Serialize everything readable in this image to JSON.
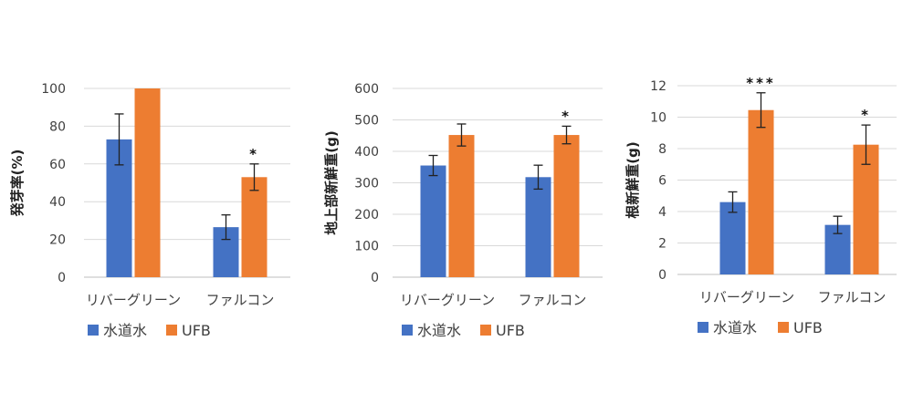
{
  "colors": {
    "tap": "#4472c4",
    "ufb": "#ed7d31",
    "grid": "#d9d9d9",
    "axis": "#bfbfbf",
    "text": "#404040"
  },
  "chart_data": [
    {
      "type": "bar",
      "ylabel": "発芽率(%)",
      "categories": [
        "リバーグリーン",
        "ファルコン"
      ],
      "ylim": [
        0,
        100
      ],
      "yticks": [
        0,
        20,
        40,
        60,
        80,
        100
      ],
      "grid": true,
      "legend": "bottom-left",
      "series": [
        {
          "name": "水道水",
          "values": [
            73,
            26.5
          ],
          "errors": [
            13.5,
            6.5
          ]
        },
        {
          "name": "UFB",
          "values": [
            100,
            53
          ],
          "errors": [
            0,
            7
          ]
        }
      ],
      "annotations": [
        {
          "category": 1,
          "series": 1,
          "text": "*"
        }
      ]
    },
    {
      "type": "bar",
      "ylabel": "地上部新鮮重(g)",
      "categories": [
        "リバーグリーン",
        "ファルコン"
      ],
      "ylim": [
        0,
        600
      ],
      "yticks": [
        0,
        100,
        200,
        300,
        400,
        500,
        600
      ],
      "grid": true,
      "legend": "bottom-left",
      "series": [
        {
          "name": "水道水",
          "values": [
            355,
            318
          ],
          "errors": [
            32,
            38
          ]
        },
        {
          "name": "UFB",
          "values": [
            452,
            452
          ],
          "errors": [
            35,
            28
          ]
        }
      ],
      "annotations": [
        {
          "category": 1,
          "series": 1,
          "text": "*"
        }
      ]
    },
    {
      "type": "bar",
      "ylabel": "根新鮮重(g)",
      "categories": [
        "リバーグリーン",
        "ファルコン"
      ],
      "ylim": [
        0,
        12
      ],
      "yticks": [
        0,
        2,
        4,
        6,
        8,
        10,
        12
      ],
      "grid": true,
      "legend": "bottom-left",
      "series": [
        {
          "name": "水道水",
          "values": [
            4.6,
            3.15
          ],
          "errors": [
            0.65,
            0.55
          ]
        },
        {
          "name": "UFB",
          "values": [
            10.45,
            8.25
          ],
          "errors": [
            1.1,
            1.25
          ]
        }
      ],
      "annotations": [
        {
          "category": 0,
          "series": 1,
          "text": "***"
        },
        {
          "category": 1,
          "series": 1,
          "text": "*"
        }
      ]
    }
  ]
}
